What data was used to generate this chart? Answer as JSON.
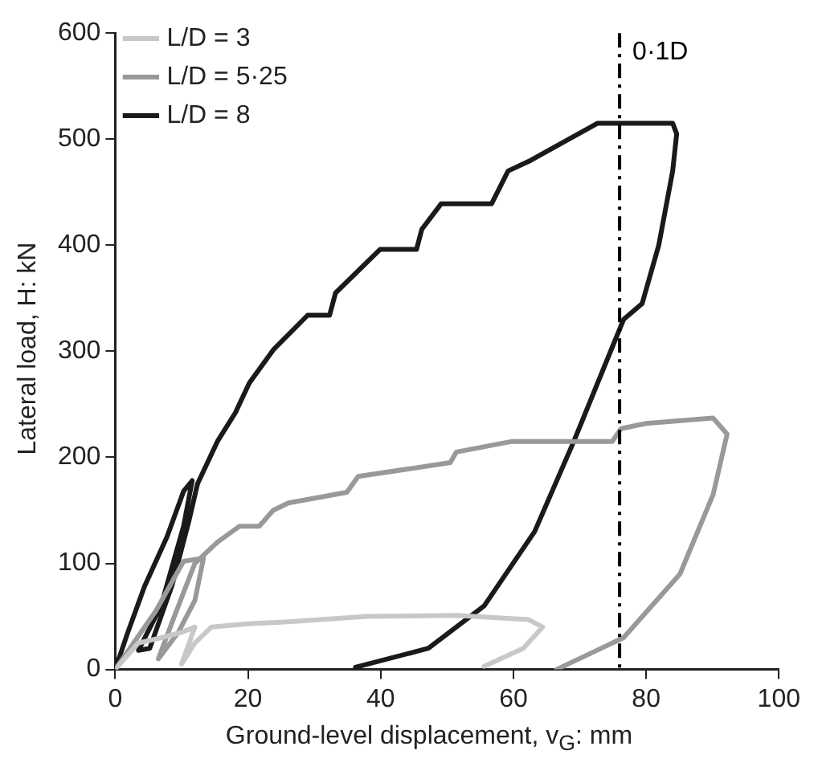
{
  "chart_data": {
    "type": "line",
    "xlabel": "Ground-level displacement, v$_{G}$: mm",
    "ylabel": "Lateral load, H: kN",
    "xlim": [
      0,
      100
    ],
    "xticks": [
      0,
      20,
      40,
      60,
      80,
      100
    ],
    "ylim": [
      0,
      600
    ],
    "yticks": [
      0,
      100,
      200,
      300,
      400,
      500,
      600
    ],
    "grid": false,
    "legend": "top left",
    "marker": "none",
    "line_style": "solid",
    "ref_lines": [
      {
        "axis": "x",
        "value": 76,
        "label": "0·1D",
        "line_style": "dashed"
      }
    ],
    "series": [
      {
        "name": "L/D = 3",
        "color": "#c8c8c8",
        "x": [
          0,
          3.5,
          7,
          10,
          12,
          10,
          12,
          14.5,
          20,
          26.1,
          37.9,
          51.4,
          62.3,
          64.4,
          61.5,
          55.6
        ],
        "values": [
          0,
          25,
          30,
          35,
          40,
          5,
          25,
          40,
          43,
          45,
          50,
          51,
          47,
          40,
          20,
          3
        ]
      },
      {
        "name": "L/D = 5·25",
        "color": "#999999",
        "x": [
          0,
          6.1,
          10.3,
          13.3,
          12,
          9.5,
          6.5,
          8.6,
          12,
          15.4,
          18.7,
          21.7,
          23.8,
          26.1,
          34.9,
          36.6,
          50.5,
          51.4,
          59.8,
          74.9,
          76.2,
          80,
          90.1,
          92.2,
          90.1,
          85.1,
          76.6,
          66.5
        ],
        "values": [
          0,
          55,
          102,
          105,
          65,
          35,
          10,
          45,
          100,
          120,
          135,
          135,
          150,
          157,
          167,
          182,
          195,
          205,
          215,
          215,
          227,
          232,
          237,
          222,
          165,
          90,
          30,
          0
        ]
      },
      {
        "name": "L/D = 8",
        "color": "#1a1a1a",
        "x": [
          0,
          1.9,
          4.4,
          7.8,
          10.3,
          11.6,
          10.3,
          6.9,
          3.5,
          5.2,
          8.6,
          11.1,
          12.4,
          15.4,
          18.1,
          20.2,
          23.9,
          29,
          32.3,
          33.2,
          39.9,
          45.4,
          46.2,
          49.1,
          56.7,
          59.2,
          62.6,
          72.7,
          84,
          84.6,
          84,
          81.9,
          79.4,
          76.6,
          69.1,
          63.2,
          55.6,
          47.2,
          36.2
        ],
        "values": [
          0,
          35,
          78,
          125,
          168,
          178,
          135,
          60,
          18,
          20,
          80,
          140,
          175,
          215,
          242,
          270,
          302,
          334,
          334,
          355,
          396,
          396,
          415,
          439,
          439,
          470,
          480,
          515,
          515,
          505,
          470,
          400,
          345,
          330,
          215,
          130,
          60,
          20,
          2
        ]
      }
    ]
  }
}
